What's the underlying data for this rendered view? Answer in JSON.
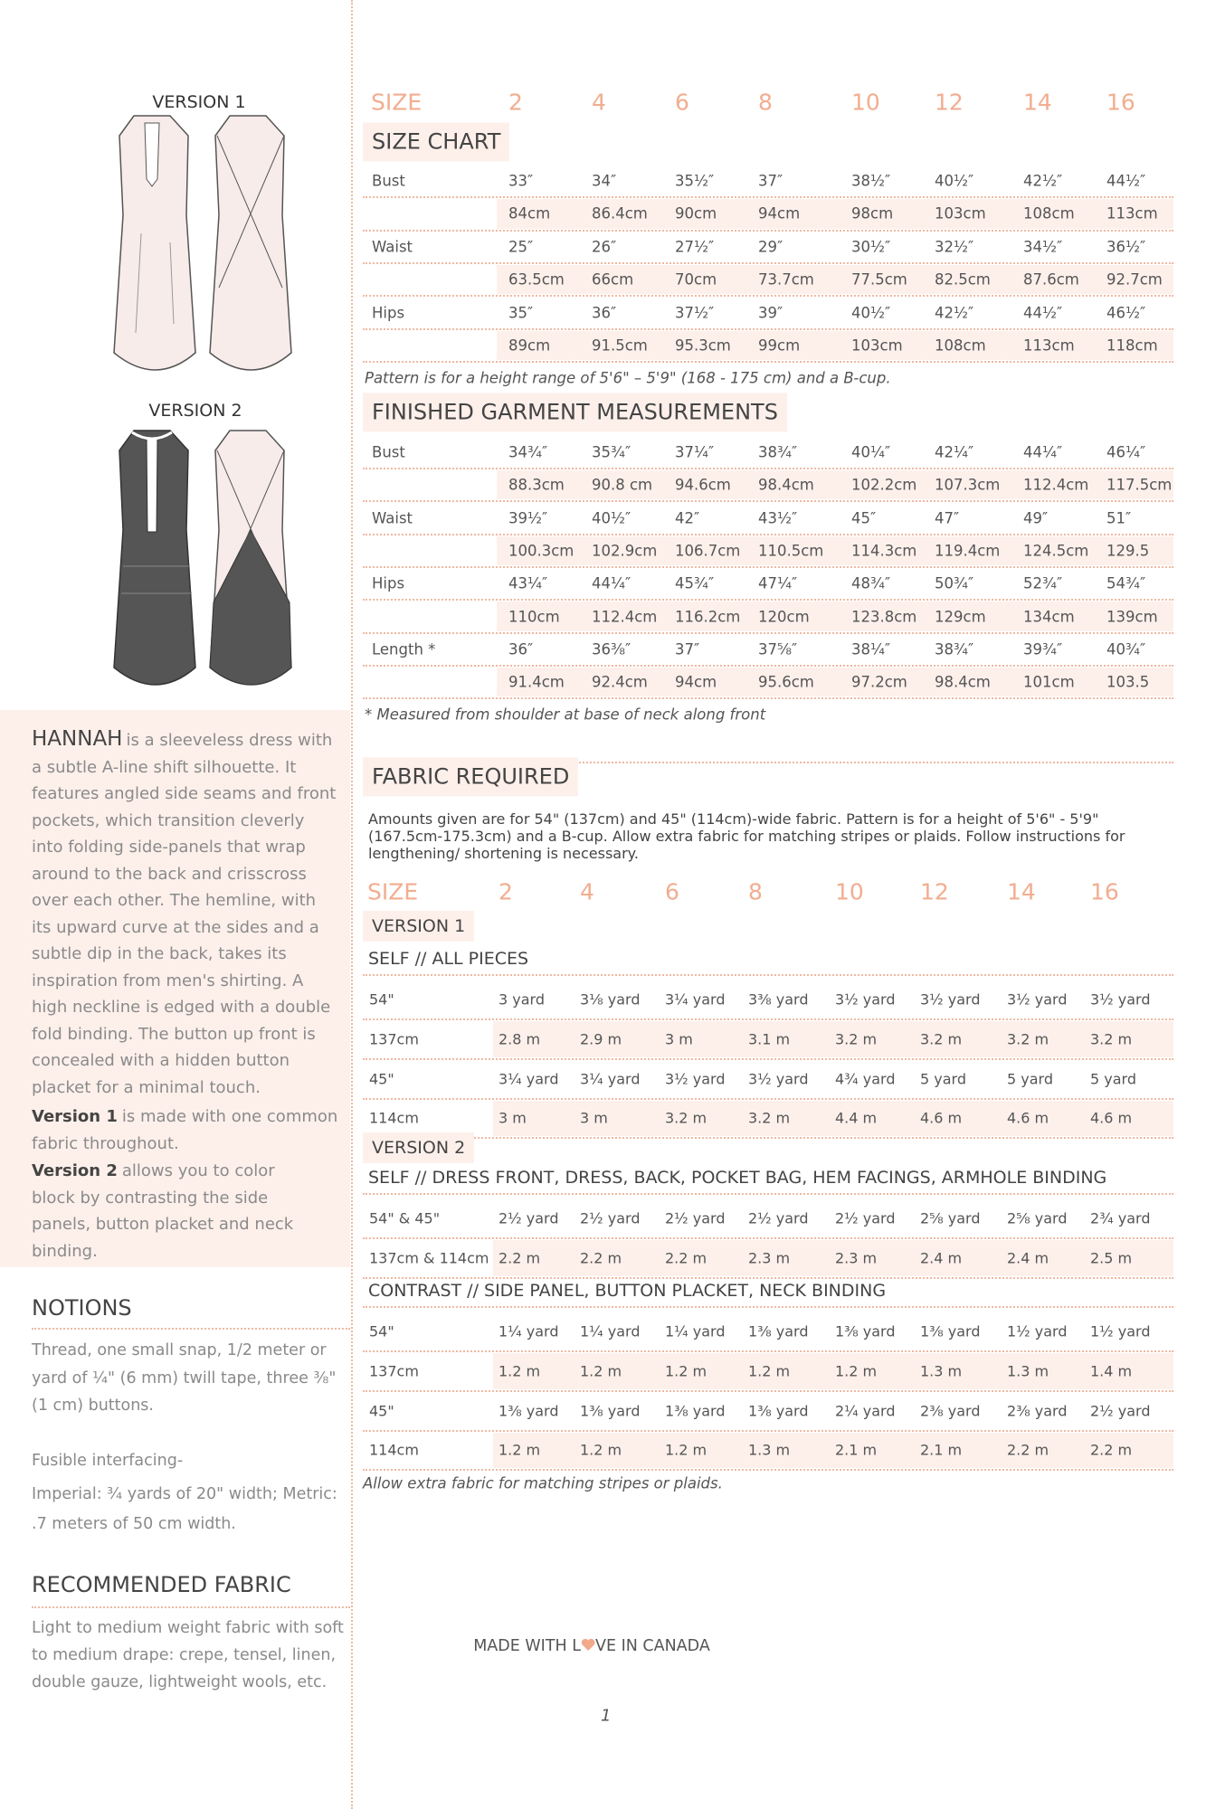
{
  "versions": [
    "VERSION 1",
    "VERSION 2"
  ],
  "description": {
    "name": "HANNAH",
    "text": "is a sleeveless dress with a subtle A-line shift silhouette. It features angled side seams and front pockets, which transition cleverly into folding side-panels that wrap around to the back and crisscross over each other. The hemline, with its upward curve at the sides and a subtle dip in the back, takes its inspiration from men's shirting. A high neckline is edged with a double fold binding. The button up front is concealed with a hidden button placket for a minimal touch."
  },
  "version_notes": [
    {
      "name": "Version 1",
      "text": "is made with one common fabric throughout."
    },
    {
      "name": "Version 2",
      "text": "allows you to color block by contrasting the side panels, button placket and neck binding."
    }
  ],
  "notions": {
    "title": "NOTIONS",
    "paragraphs": [
      "Thread, one small snap, 1/2 meter or yard of ¼\" (6 mm) twill tape, three ⅜\" (1 cm) buttons.",
      "Fusible interfacing-",
      "Imperial: ¾ yards of 20\" width; Metric: .7 meters of 50 cm width."
    ]
  },
  "recommended_fabric": {
    "title": "RECOMMENDED FABRIC",
    "text": "Light to medium weight fabric with soft to medium drape: crepe, tensel, linen, double gauze, lightweight wools, etc."
  },
  "size_label": "SIZE",
  "sizes": [
    2,
    4,
    6,
    8,
    10,
    12,
    14,
    16
  ],
  "size_chart": {
    "title": "SIZE CHART",
    "rows": [
      {
        "label": "Bust",
        "values": [
          "33″",
          "34″",
          "35½″",
          "37″",
          "38½″",
          "40½″",
          "42½″",
          "44½″"
        ]
      },
      {
        "values": [
          "84cm",
          "86.4cm",
          "90cm",
          "94cm",
          "98cm",
          "103cm",
          "108cm",
          "113cm"
        ]
      },
      {
        "label": "Waist",
        "values": [
          "25″",
          "26″",
          "27½″",
          "29″",
          "30½″",
          "32½″",
          "34½″",
          "36½″"
        ]
      },
      {
        "values": [
          "63.5cm",
          "66cm",
          "70cm",
          "73.7cm",
          "77.5cm",
          "82.5cm",
          "87.6cm",
          "92.7cm"
        ]
      },
      {
        "label": "Hips",
        "values": [
          "35″",
          "36″",
          "37½″",
          "39″",
          "40½″",
          "42½″",
          "44½″",
          "46½″"
        ]
      },
      {
        "values": [
          "89cm",
          "91.5cm",
          "95.3cm",
          "99cm",
          "103cm",
          "108cm",
          "113cm",
          "118cm"
        ]
      }
    ],
    "note": "Pattern is for a height range of 5'6\" – 5'9\" (168 - 175 cm) and a B-cup."
  },
  "finished_measurements": {
    "title": "FINISHED GARMENT MEASUREMENTS",
    "rows": [
      {
        "label": "Bust",
        "values": [
          "34¾″",
          "35¾″",
          "37¼″",
          "38¾″",
          "40¼″",
          "42¼″",
          "44¼″",
          "46¼″"
        ]
      },
      {
        "values": [
          "88.3cm",
          "90.8 cm",
          "94.6cm",
          "98.4cm",
          "102.2cm",
          "107.3cm",
          "112.4cm",
          "117.5cm"
        ]
      },
      {
        "label": "Waist",
        "values": [
          "39½″",
          "40½″",
          "42″",
          "43½″",
          "45″",
          "47″",
          "49″",
          "51″"
        ]
      },
      {
        "values": [
          "100.3cm",
          "102.9cm",
          "106.7cm",
          "110.5cm",
          "114.3cm",
          "119.4cm",
          "124.5cm",
          "129.5"
        ]
      },
      {
        "label": "Hips",
        "values": [
          "43¼″",
          "44¼″",
          "45¾″",
          "47¼″",
          "48¾″",
          "50¾″",
          "52¾″",
          "54¾″"
        ]
      },
      {
        "values": [
          "110cm",
          "112.4cm",
          "116.2cm",
          "120cm",
          "123.8cm",
          "129cm",
          "134cm",
          "139cm"
        ]
      },
      {
        "label": "Length *",
        "values": [
          "36″",
          "36⅜″",
          "37″",
          "37⅝″",
          "38¼″",
          "38¾″",
          "39¾″",
          "40¾″"
        ]
      },
      {
        "values": [
          "91.4cm",
          "92.4cm",
          "94cm",
          "95.6cm",
          "97.2cm",
          "98.4cm",
          "101cm",
          "103.5"
        ]
      }
    ],
    "note": "* Measured from shoulder at base of neck along front"
  },
  "fabric_required": {
    "title": "FABRIC REQUIRED",
    "intro": "Amounts given are for 54\" (137cm) and 45\" (114cm)-wide fabric. Pattern is for a height of 5'6\" - 5'9\" (167.5cm-175.3cm) and a B-cup. Allow extra fabric for matching stripes or plaids. Follow instructions for lengthening/ shortening is necessary.",
    "size_label": "SIZE",
    "sizes": [
      2,
      4,
      6,
      8,
      10,
      12,
      14,
      16
    ],
    "sections": [
      {
        "version": "VERSION 1",
        "groups": [
          {
            "title": "SELF // ALL PIECES",
            "rows": [
              {
                "label": "54\"",
                "values": [
                  "3 yard",
                  "3⅛ yard",
                  "3¼ yard",
                  "3⅜ yard",
                  "3½ yard",
                  "3½ yard",
                  "3½ yard",
                  "3½ yard"
                ]
              },
              {
                "label": "137cm",
                "values": [
                  "2.8 m",
                  "2.9 m",
                  "3 m",
                  "3.1 m",
                  "3.2 m",
                  "3.2 m",
                  "3.2 m",
                  "3.2 m"
                ]
              },
              {
                "label": "45\"",
                "values": [
                  "3¼ yard",
                  "3¼ yard",
                  "3½ yard",
                  "3½ yard",
                  "4¾ yard",
                  "5 yard",
                  "5 yard",
                  "5 yard"
                ]
              },
              {
                "label": "114cm",
                "values": [
                  "3 m",
                  "3 m",
                  "3.2 m",
                  "3.2 m",
                  "4.4 m",
                  "4.6 m",
                  "4.6 m",
                  "4.6 m"
                ]
              }
            ]
          }
        ]
      },
      {
        "version": "VERSION 2",
        "groups": [
          {
            "title": "SELF // DRESS FRONT, DRESS, BACK, POCKET BAG, HEM FACINGS, ARMHOLE BINDING",
            "rows": [
              {
                "label": "54\" & 45\"",
                "values": [
                  "2½ yard",
                  "2½ yard",
                  "2½ yard",
                  "2½ yard",
                  "2½ yard",
                  "2⅝ yard",
                  "2⅝ yard",
                  "2¾ yard"
                ]
              },
              {
                "label": "137cm & 114cm",
                "values": [
                  "2.2 m",
                  "2.2 m",
                  "2.2 m",
                  "2.3 m",
                  "2.3 m",
                  "2.4 m",
                  "2.4 m",
                  "2.5 m"
                ]
              }
            ]
          },
          {
            "title": "CONTRAST // SIDE PANEL, BUTTON PLACKET, NECK BINDING",
            "rows": [
              {
                "label": "54\"",
                "values": [
                  "1¼ yard",
                  "1¼ yard",
                  "1¼ yard",
                  "1⅜ yard",
                  "1⅜ yard",
                  "1⅜ yard",
                  "1½ yard",
                  "1½ yard"
                ]
              },
              {
                "label": "137cm",
                "values": [
                  "1.2 m",
                  "1.2 m",
                  "1.2 m",
                  "1.2 m",
                  "1.2 m",
                  "1.3 m",
                  "1.3 m",
                  "1.4 m"
                ]
              },
              {
                "label": "45\"",
                "values": [
                  "1⅜ yard",
                  "1⅜ yard",
                  "1⅜ yard",
                  "1⅜ yard",
                  "2¼ yard",
                  "2⅜ yard",
                  "2⅜ yard",
                  "2½ yard"
                ]
              },
              {
                "label": "114cm",
                "values": [
                  "1.2 m",
                  "1.2 m",
                  "1.2 m",
                  "1.3 m",
                  "2.1 m",
                  "2.1 m",
                  "2.2 m",
                  "2.2 m"
                ]
              }
            ]
          }
        ]
      }
    ],
    "note": "Allow extra fabric for matching stripes or plaids."
  },
  "footer": {
    "made_with": [
      "MADE WITH L",
      "VE IN CANADA"
    ],
    "page_number": 1
  }
}
